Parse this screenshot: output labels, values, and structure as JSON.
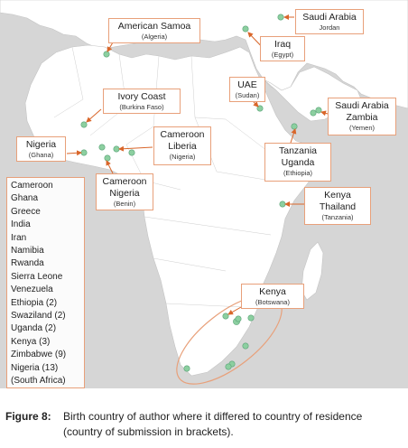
{
  "callouts": [
    {
      "id": "american-samoa",
      "main": [
        "American Samoa"
      ],
      "sub": "(Algeria)"
    },
    {
      "id": "saudi-arabia-top",
      "main": [
        "Saudi Arabia"
      ],
      "sub": "Jordan"
    },
    {
      "id": "iraq",
      "main": [
        "Iraq"
      ],
      "sub": "(Egypt)"
    },
    {
      "id": "uae",
      "main": [
        "UAE"
      ],
      "sub": "(Sudan)"
    },
    {
      "id": "ivory-coast",
      "main": [
        "Ivory Coast"
      ],
      "sub": "(Burkina Faso)"
    },
    {
      "id": "saudi-arabia-zambia",
      "main": [
        "Saudi Arabia",
        "Zambia"
      ],
      "sub": "(Yemen)"
    },
    {
      "id": "nigeria",
      "main": [
        "Nigeria"
      ],
      "sub": "(Ghana)"
    },
    {
      "id": "cameroon-liberia",
      "main": [
        "Cameroon",
        "Liberia"
      ],
      "sub": "(Nigeria)"
    },
    {
      "id": "tanzania-uganda",
      "main": [
        "Tanzania",
        "Uganda"
      ],
      "sub": "(Ethiopia)"
    },
    {
      "id": "cameroon-nigeria",
      "main": [
        "Cameroon",
        "Nigeria"
      ],
      "sub": "(Benin)"
    },
    {
      "id": "kenya-thailand",
      "main": [
        "Kenya",
        "Thailand"
      ],
      "sub": "(Tanzania)"
    },
    {
      "id": "kenya",
      "main": [
        "Kenya"
      ],
      "sub": "(Botswana)"
    }
  ],
  "south_africa_list": [
    "Cameroon",
    "Ghana",
    "Greece",
    "India",
    "Iran",
    "Namibia",
    "Rwanda",
    "Sierra Leone",
    "Venezuela",
    "Ethiopia (2)",
    "Swaziland (2)",
    "Uganda (2)",
    "Kenya (3)",
    "Zimbabwe (9)",
    "Nigeria (13)",
    "(South Africa)"
  ],
  "caption": {
    "label": "Figure 8:",
    "text": "Birth country of author where it differed to country of residence (country of submission in brackets)."
  },
  "colors": {
    "sea": "#d6d6d6",
    "land": "#ffffff",
    "border": "#c4c4c4",
    "marker": "#8ccfa0",
    "marker_stroke": "#5aa477",
    "arrow": "#d9662a",
    "box_border": "#e8a07a"
  }
}
